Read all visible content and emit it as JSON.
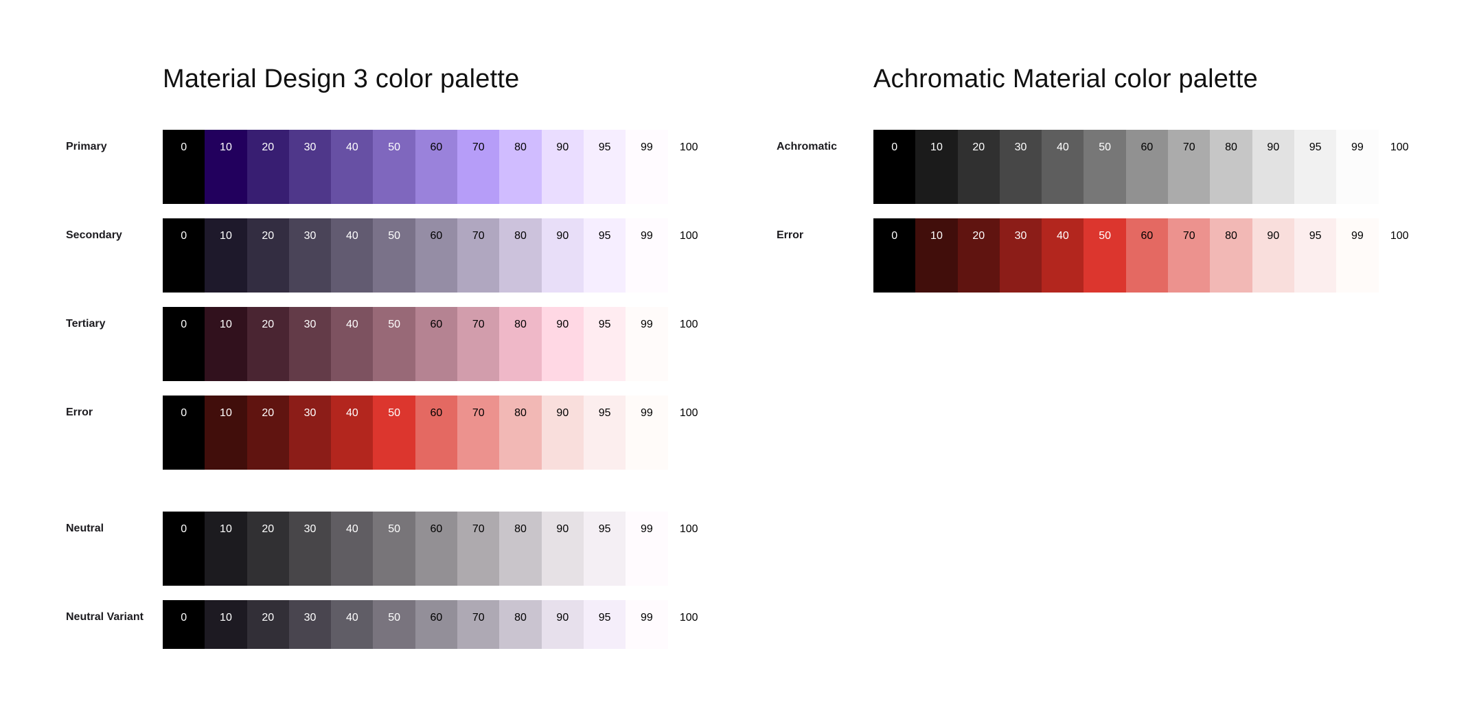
{
  "sections": [
    {
      "id": "md3",
      "title": "Material Design 3 color palette",
      "rows": [
        {
          "label": "Primary",
          "tones": [
            {
              "tone": "0",
              "color": "#000000",
              "text": "#ffffff"
            },
            {
              "tone": "10",
              "color": "#22005d",
              "text": "#ffffff"
            },
            {
              "tone": "20",
              "color": "#381e72",
              "text": "#ffffff"
            },
            {
              "tone": "30",
              "color": "#4f378a",
              "text": "#ffffff"
            },
            {
              "tone": "40",
              "color": "#6750a4",
              "text": "#ffffff"
            },
            {
              "tone": "50",
              "color": "#7f67be",
              "text": "#ffffff"
            },
            {
              "tone": "60",
              "color": "#9a82db",
              "text": "#000000"
            },
            {
              "tone": "70",
              "color": "#b69df8",
              "text": "#000000"
            },
            {
              "tone": "80",
              "color": "#d0bcff",
              "text": "#000000"
            },
            {
              "tone": "90",
              "color": "#eaddff",
              "text": "#000000"
            },
            {
              "tone": "95",
              "color": "#f6eeff",
              "text": "#000000"
            },
            {
              "tone": "99",
              "color": "#fffbff",
              "text": "#000000"
            },
            {
              "tone": "100",
              "color": "#ffffff",
              "text": "#000000"
            }
          ]
        },
        {
          "label": "Secondary",
          "tones": [
            {
              "tone": "0",
              "color": "#000000",
              "text": "#ffffff"
            },
            {
              "tone": "10",
              "color": "#1e192b",
              "text": "#ffffff"
            },
            {
              "tone": "20",
              "color": "#332d41",
              "text": "#ffffff"
            },
            {
              "tone": "30",
              "color": "#4a4458",
              "text": "#ffffff"
            },
            {
              "tone": "40",
              "color": "#625b71",
              "text": "#ffffff"
            },
            {
              "tone": "50",
              "color": "#7a7289",
              "text": "#ffffff"
            },
            {
              "tone": "60",
              "color": "#958da5",
              "text": "#000000"
            },
            {
              "tone": "70",
              "color": "#b0a7c0",
              "text": "#000000"
            },
            {
              "tone": "80",
              "color": "#ccc2dc",
              "text": "#000000"
            },
            {
              "tone": "90",
              "color": "#e8def8",
              "text": "#000000"
            },
            {
              "tone": "95",
              "color": "#f6eeff",
              "text": "#000000"
            },
            {
              "tone": "99",
              "color": "#fffbff",
              "text": "#000000"
            },
            {
              "tone": "100",
              "color": "#ffffff",
              "text": "#000000"
            }
          ]
        },
        {
          "label": "Tertiary",
          "tones": [
            {
              "tone": "0",
              "color": "#000000",
              "text": "#ffffff"
            },
            {
              "tone": "10",
              "color": "#31111d",
              "text": "#ffffff"
            },
            {
              "tone": "20",
              "color": "#4a2532",
              "text": "#ffffff"
            },
            {
              "tone": "30",
              "color": "#633b48",
              "text": "#ffffff"
            },
            {
              "tone": "40",
              "color": "#7d5260",
              "text": "#ffffff"
            },
            {
              "tone": "50",
              "color": "#986977",
              "text": "#ffffff"
            },
            {
              "tone": "60",
              "color": "#b58392",
              "text": "#000000"
            },
            {
              "tone": "70",
              "color": "#d29dac",
              "text": "#000000"
            },
            {
              "tone": "80",
              "color": "#efb8c8",
              "text": "#000000"
            },
            {
              "tone": "90",
              "color": "#ffd8e4",
              "text": "#000000"
            },
            {
              "tone": "95",
              "color": "#ffecf1",
              "text": "#000000"
            },
            {
              "tone": "99",
              "color": "#fffbfa",
              "text": "#000000"
            },
            {
              "tone": "100",
              "color": "#ffffff",
              "text": "#000000"
            }
          ]
        },
        {
          "label": "Error",
          "tones": [
            {
              "tone": "0",
              "color": "#000000",
              "text": "#ffffff"
            },
            {
              "tone": "10",
              "color": "#410e0b",
              "text": "#ffffff"
            },
            {
              "tone": "20",
              "color": "#601410",
              "text": "#ffffff"
            },
            {
              "tone": "30",
              "color": "#8c1d18",
              "text": "#ffffff"
            },
            {
              "tone": "40",
              "color": "#b3261e",
              "text": "#ffffff"
            },
            {
              "tone": "50",
              "color": "#dc362e",
              "text": "#ffffff"
            },
            {
              "tone": "60",
              "color": "#e46962",
              "text": "#000000"
            },
            {
              "tone": "70",
              "color": "#ec928e",
              "text": "#000000"
            },
            {
              "tone": "80",
              "color": "#f2b8b5",
              "text": "#000000"
            },
            {
              "tone": "90",
              "color": "#f9dedc",
              "text": "#000000"
            },
            {
              "tone": "95",
              "color": "#fceeee",
              "text": "#000000"
            },
            {
              "tone": "99",
              "color": "#fffbf9",
              "text": "#000000"
            },
            {
              "tone": "100",
              "color": "#ffffff",
              "text": "#000000"
            }
          ]
        },
        {
          "label": "Neutral",
          "tones": [
            {
              "tone": "0",
              "color": "#000000",
              "text": "#ffffff"
            },
            {
              "tone": "10",
              "color": "#1c1b1f",
              "text": "#ffffff"
            },
            {
              "tone": "20",
              "color": "#313033",
              "text": "#ffffff"
            },
            {
              "tone": "30",
              "color": "#484649",
              "text": "#ffffff"
            },
            {
              "tone": "40",
              "color": "#605d62",
              "text": "#ffffff"
            },
            {
              "tone": "50",
              "color": "#787579",
              "text": "#ffffff"
            },
            {
              "tone": "60",
              "color": "#939094",
              "text": "#000000"
            },
            {
              "tone": "70",
              "color": "#aeaaae",
              "text": "#000000"
            },
            {
              "tone": "80",
              "color": "#c9c5ca",
              "text": "#000000"
            },
            {
              "tone": "90",
              "color": "#e6e1e5",
              "text": "#000000"
            },
            {
              "tone": "95",
              "color": "#f4eff4",
              "text": "#000000"
            },
            {
              "tone": "99",
              "color": "#fffbfe",
              "text": "#000000"
            },
            {
              "tone": "100",
              "color": "#ffffff",
              "text": "#000000"
            }
          ]
        },
        {
          "label": "Neutral Variant",
          "tones": [
            {
              "tone": "0",
              "color": "#000000",
              "text": "#ffffff"
            },
            {
              "tone": "10",
              "color": "#1d1a22",
              "text": "#ffffff"
            },
            {
              "tone": "20",
              "color": "#322f37",
              "text": "#ffffff"
            },
            {
              "tone": "30",
              "color": "#49454f",
              "text": "#ffffff"
            },
            {
              "tone": "40",
              "color": "#605d66",
              "text": "#ffffff"
            },
            {
              "tone": "50",
              "color": "#79747e",
              "text": "#ffffff"
            },
            {
              "tone": "60",
              "color": "#938f99",
              "text": "#000000"
            },
            {
              "tone": "70",
              "color": "#aea9b4",
              "text": "#000000"
            },
            {
              "tone": "80",
              "color": "#cac4d0",
              "text": "#000000"
            },
            {
              "tone": "90",
              "color": "#e7e0ec",
              "text": "#000000"
            },
            {
              "tone": "95",
              "color": "#f5eefa",
              "text": "#000000"
            },
            {
              "tone": "99",
              "color": "#fffbfe",
              "text": "#000000"
            },
            {
              "tone": "100",
              "color": "#ffffff",
              "text": "#000000"
            }
          ]
        }
      ]
    },
    {
      "id": "achromatic",
      "title": "Achromatic Material color palette",
      "rows": [
        {
          "label": "Achromatic",
          "tones": [
            {
              "tone": "0",
              "color": "#000000",
              "text": "#ffffff"
            },
            {
              "tone": "10",
              "color": "#1b1b1b",
              "text": "#ffffff"
            },
            {
              "tone": "20",
              "color": "#303030",
              "text": "#ffffff"
            },
            {
              "tone": "30",
              "color": "#474747",
              "text": "#ffffff"
            },
            {
              "tone": "40",
              "color": "#5e5e5e",
              "text": "#ffffff"
            },
            {
              "tone": "50",
              "color": "#777777",
              "text": "#ffffff"
            },
            {
              "tone": "60",
              "color": "#919191",
              "text": "#000000"
            },
            {
              "tone": "70",
              "color": "#ababab",
              "text": "#000000"
            },
            {
              "tone": "80",
              "color": "#c6c6c6",
              "text": "#000000"
            },
            {
              "tone": "90",
              "color": "#e2e2e2",
              "text": "#000000"
            },
            {
              "tone": "95",
              "color": "#f1f1f1",
              "text": "#000000"
            },
            {
              "tone": "99",
              "color": "#fcfcfc",
              "text": "#000000"
            },
            {
              "tone": "100",
              "color": "#ffffff",
              "text": "#000000"
            }
          ]
        },
        {
          "label": "Error",
          "tones": [
            {
              "tone": "0",
              "color": "#000000",
              "text": "#ffffff"
            },
            {
              "tone": "10",
              "color": "#410e0b",
              "text": "#ffffff"
            },
            {
              "tone": "20",
              "color": "#601410",
              "text": "#ffffff"
            },
            {
              "tone": "30",
              "color": "#8c1d18",
              "text": "#ffffff"
            },
            {
              "tone": "40",
              "color": "#b3261e",
              "text": "#ffffff"
            },
            {
              "tone": "50",
              "color": "#dc362e",
              "text": "#ffffff"
            },
            {
              "tone": "60",
              "color": "#e46962",
              "text": "#000000"
            },
            {
              "tone": "70",
              "color": "#ec928e",
              "text": "#000000"
            },
            {
              "tone": "80",
              "color": "#f2b8b5",
              "text": "#000000"
            },
            {
              "tone": "90",
              "color": "#f9dedc",
              "text": "#000000"
            },
            {
              "tone": "95",
              "color": "#fceeee",
              "text": "#000000"
            },
            {
              "tone": "99",
              "color": "#fffbf9",
              "text": "#000000"
            },
            {
              "tone": "100",
              "color": "#ffffff",
              "text": "#000000"
            }
          ]
        }
      ]
    }
  ]
}
